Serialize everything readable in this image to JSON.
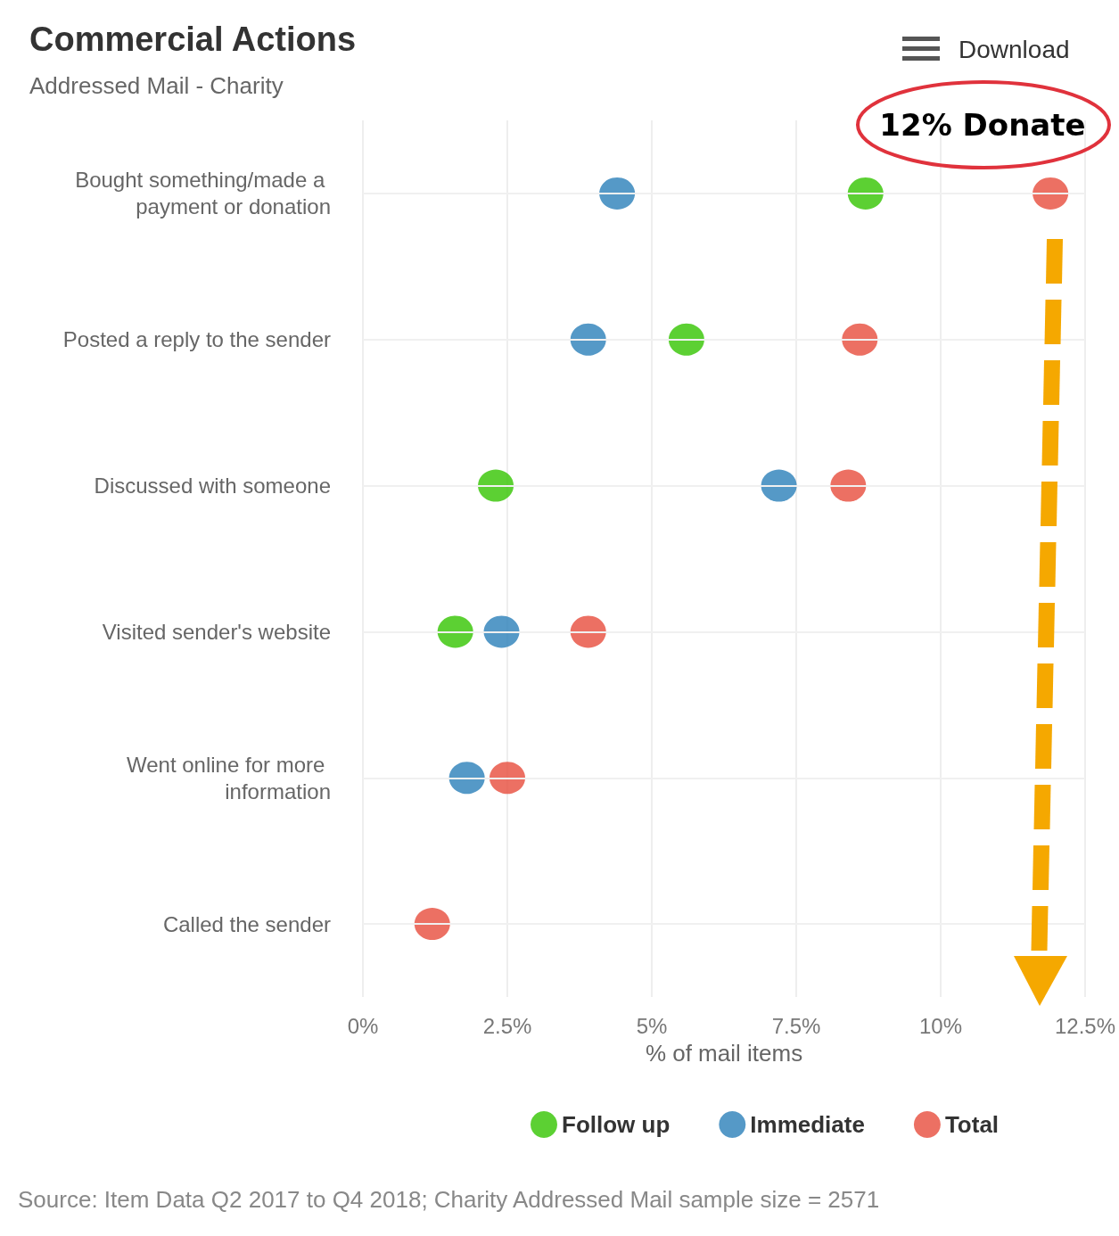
{
  "chart_data": {
    "type": "scatter",
    "title": "Commercial Actions",
    "subtitle": "Addressed Mail - Charity",
    "xlabel": "% of mail items",
    "categories": [
      "Bought something/made a payment or donation",
      "Posted a reply to the sender",
      "Discussed with someone",
      "Visited sender's website",
      "Went online for more information",
      "Called the sender"
    ],
    "series": [
      {
        "name": "Follow up",
        "color": "#33c400",
        "values": [
          8.7,
          5.6,
          2.3,
          1.6,
          null,
          null
        ]
      },
      {
        "name": "Immediate",
        "color": "#2b80b9",
        "values": [
          4.4,
          3.9,
          7.2,
          2.4,
          1.8,
          null
        ]
      },
      {
        "name": "Total",
        "color": "#e74c3c",
        "values": [
          11.9,
          8.6,
          8.4,
          3.9,
          2.5,
          1.2
        ]
      }
    ],
    "orientation": "horizontal",
    "xlim": [
      0,
      12.5
    ],
    "xticks": [
      {
        "value": 0,
        "label": "0%"
      },
      {
        "value": 2.5,
        "label": "2.5%"
      },
      {
        "value": 5,
        "label": "5%"
      },
      {
        "value": 7.5,
        "label": "7.5%"
      },
      {
        "value": 10,
        "label": "10%"
      },
      {
        "value": 12.5,
        "label": "12.5%"
      }
    ],
    "grid": true,
    "legend": "bottom",
    "marker": "circle",
    "annotations": [
      "12% Donate",
      "Download",
      "Source: Item Data Q2 2017 to Q4 2018; Charity Addressed Mail sample size = 2571"
    ]
  }
}
